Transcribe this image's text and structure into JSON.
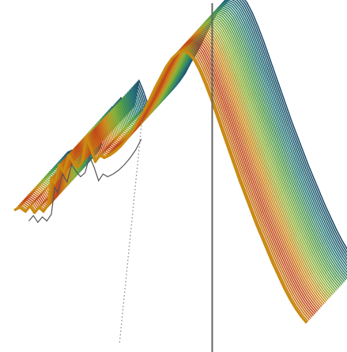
{
  "chart_data": {
    "type": "line",
    "description_note": "",
    "x": [
      0,
      0.5,
      1,
      1.4,
      1.8,
      2.2,
      2.6,
      3.0,
      3.3,
      3.6,
      4.0,
      4.4,
      4.8,
      5.2,
      5.6,
      6.0,
      6.4,
      6.8,
      7.2,
      7.6,
      8.0,
      8.5,
      9.0,
      9.5,
      10.0,
      10.5,
      11.0,
      11.5,
      12.0,
      12.5,
      13.0,
      13.5,
      14.0,
      14.5,
      15.0,
      15.5,
      16.0,
      16.5,
      17.0,
      17.5,
      18.0,
      18.5,
      19.0,
      19.5,
      20.0,
      20.5,
      21.0,
      21.5,
      22.0,
      22.5,
      23.0,
      23.5,
      24.0,
      24.5,
      25.0,
      25.5,
      26.0
    ],
    "base_curve": [
      0.38,
      0.4,
      0.37,
      0.41,
      0.36,
      0.4,
      0.37,
      0.42,
      0.62,
      0.58,
      0.72,
      0.66,
      0.79,
      0.74,
      0.7,
      0.73,
      0.92,
      0.84,
      0.74,
      0.79,
      0.77,
      0.79,
      0.82,
      0.86,
      0.91,
      0.97,
      1.05,
      1.12,
      1.2,
      1.29,
      1.37,
      1.45,
      1.51,
      1.55,
      1.57,
      1.55,
      1.5,
      1.42,
      1.32,
      1.21,
      1.09,
      0.97,
      0.85,
      0.73,
      0.61,
      0.5,
      0.39,
      0.28,
      0.18,
      0.08,
      -0.02,
      -0.11,
      -0.2,
      -0.28,
      -0.35,
      -0.41,
      -0.46
    ],
    "series_count": 40,
    "series_shift": {
      "dx": 0.12,
      "dy": 0.011
    },
    "color_ramp": [
      "#1f4e6b",
      "#2a7a7c",
      "#4e9a4a",
      "#8fb33a",
      "#d08a1e",
      "#c0421a",
      "#c98a12"
    ],
    "reference_curve": {
      "x_start": 0.6,
      "x_end": 11.3,
      "color": "#555555"
    },
    "vertical_line": {
      "x": 17.6,
      "color": "#666666"
    },
    "dotted_line": {
      "color": "#888888"
    },
    "xlim": [
      0,
      26
    ],
    "ylim": [
      -0.6,
      1.9
    ],
    "grid": false,
    "legend": "none",
    "title": "",
    "xlabel": "",
    "ylabel": ""
  }
}
